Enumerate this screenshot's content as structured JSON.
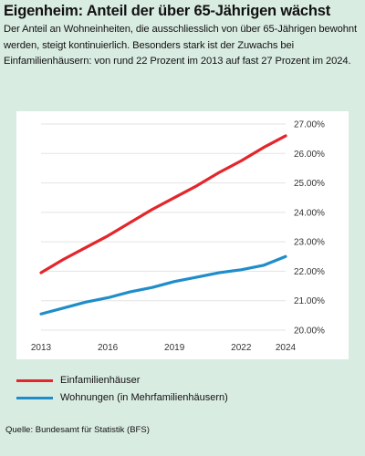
{
  "header": {
    "title": "Eigenheim: Anteil der über 65-Jährigen wächst",
    "subtitle": "Der Anteil an Wohneinheiten, die ausschliesslich von über 65-Jährigen bewohnt werden, steigt kontinuierlich. Besonders stark ist der Zuwachs bei Einfamilienhäusern: von rund 22 Prozent im 2013 auf fast 27 Prozent im 2024."
  },
  "chart_data": {
    "type": "line",
    "x": [
      2013,
      2014,
      2015,
      2016,
      2017,
      2018,
      2019,
      2020,
      2021,
      2022,
      2023,
      2024
    ],
    "x_ticks": [
      "2013",
      "2016",
      "2019",
      "2022",
      "2024"
    ],
    "y_ticks": [
      "27.00%",
      "26.00%",
      "25.00%",
      "24.00%",
      "23.00%",
      "22.00%",
      "21.00%",
      "20.00%"
    ],
    "ylim": [
      20,
      27
    ],
    "y_axis_side": "right",
    "grid": "horizontal",
    "legend_position": "bottom",
    "series": [
      {
        "name": "Einfamilienhäuser",
        "color": "#e3262b",
        "values": [
          21.95,
          22.4,
          22.8,
          23.2,
          23.65,
          24.1,
          24.5,
          24.9,
          25.35,
          25.75,
          26.2,
          26.6
        ]
      },
      {
        "name": "Wohnungen (in Mehrfamilienhäusern)",
        "color": "#1f8dc9",
        "values": [
          20.55,
          20.75,
          20.95,
          21.1,
          21.3,
          21.45,
          21.65,
          21.8,
          21.95,
          22.05,
          22.2,
          22.5
        ]
      }
    ]
  },
  "footer": {
    "source": "Quelle: Bundesamt für Statistik (BFS)"
  }
}
